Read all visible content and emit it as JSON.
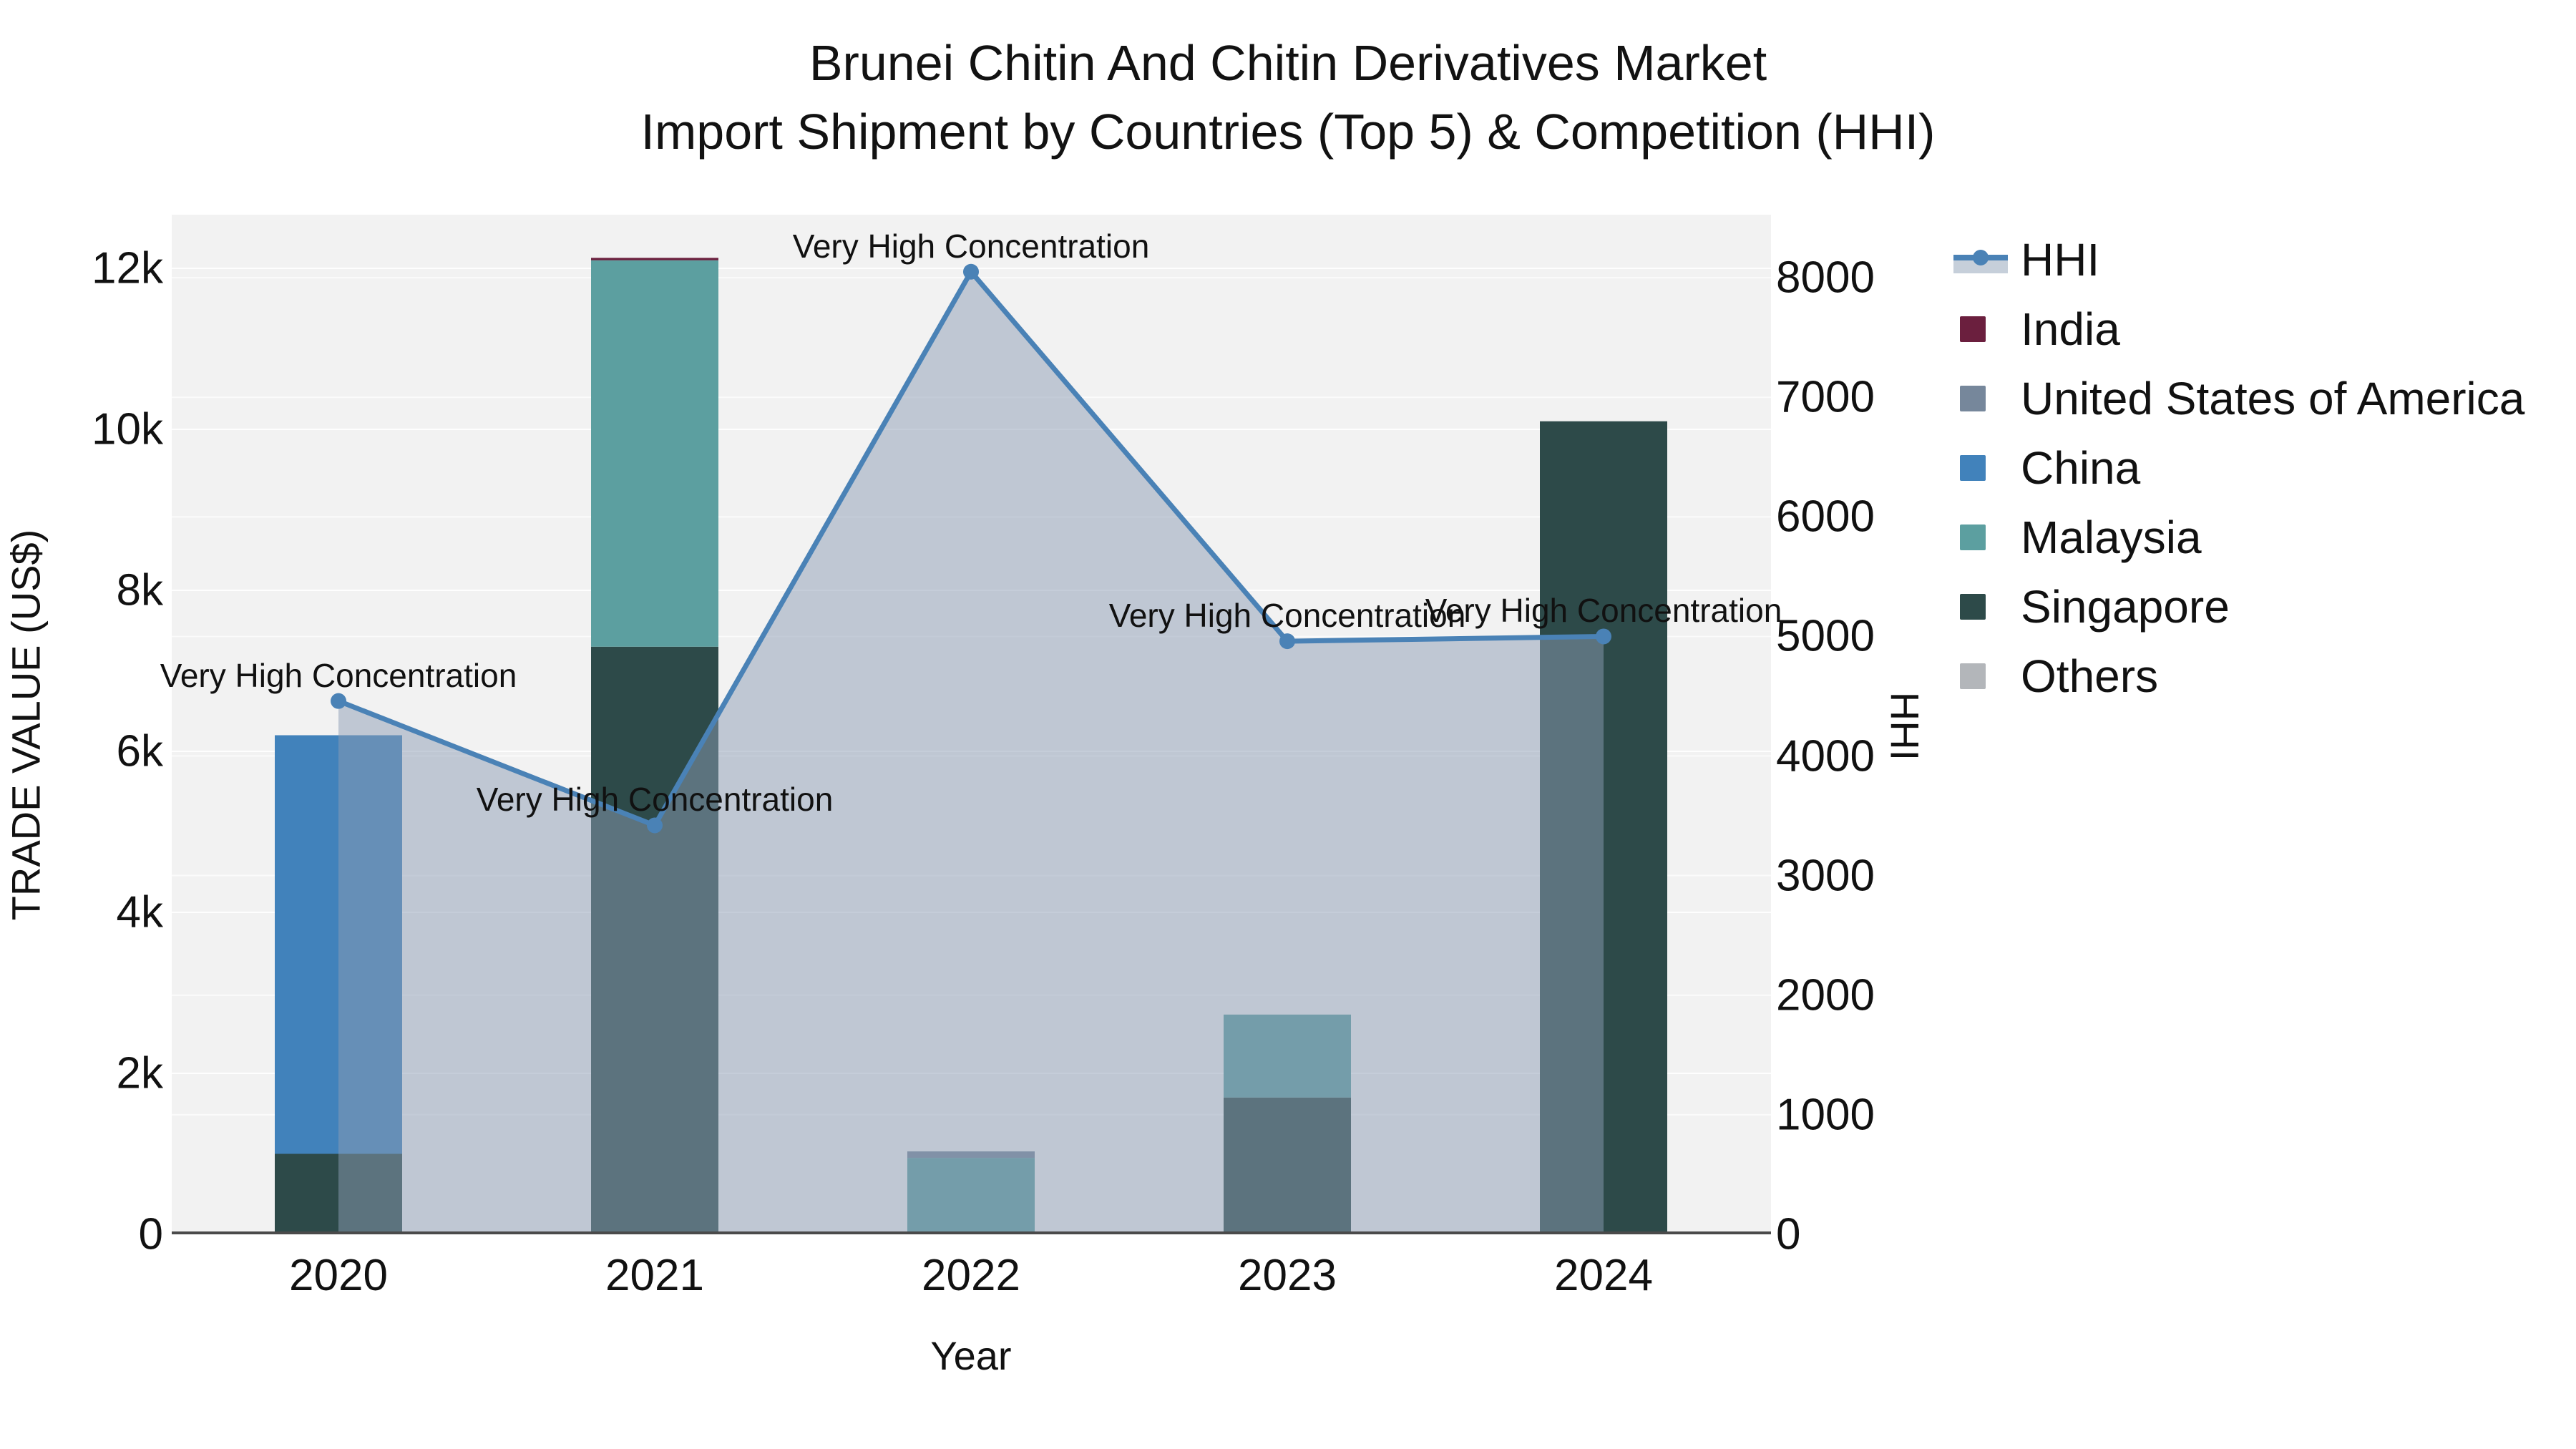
{
  "title": {
    "line1": "Brunei Chitin And Chitin Derivatives Market",
    "line2": "Import Shipment by Countries (Top 5) & Competition (HHI)"
  },
  "axes": {
    "x": {
      "title": "Year",
      "ticks": [
        "2020",
        "2021",
        "2022",
        "2023",
        "2024"
      ]
    },
    "y_left": {
      "title": "TRADE VALUE (US$)",
      "ticks": [
        "0",
        "2k",
        "4k",
        "6k",
        "8k",
        "10k",
        "12k"
      ],
      "tick_values": [
        0,
        2000,
        4000,
        6000,
        8000,
        10000,
        12000
      ]
    },
    "y_right": {
      "title": "HHI",
      "ticks": [
        "0",
        "1000",
        "2000",
        "3000",
        "4000",
        "5000",
        "6000",
        "7000",
        "8000"
      ],
      "tick_values": [
        0,
        1000,
        2000,
        3000,
        4000,
        5000,
        6000,
        7000,
        8000
      ]
    }
  },
  "legend": {
    "order": [
      "HHI",
      "India",
      "United States of America",
      "China",
      "Malaysia",
      "Singapore",
      "Others"
    ]
  },
  "colors": {
    "text": "#111111",
    "plot_bg": "#f2f2f2",
    "axis_line": "#4a4a4a",
    "gridline": "#ffffff",
    "hhi_line": "#4a82b6",
    "hhi_area": "rgba(140,156,180,0.5)",
    "india": "#6b1f3e",
    "united_states_of_america": "#76879b",
    "china": "#4182bb",
    "malaysia": "#5c9fa0",
    "singapore": "#2d4a49",
    "others": "#b3b6ba"
  },
  "chart_data": {
    "type": "bar+line",
    "title": "Brunei Chitin And Chitin Derivatives Market — Import Shipment by Countries (Top 5) & Competition (HHI)",
    "xlabel": "Year",
    "ylabel_left": "TRADE VALUE (US$)",
    "ylabel_right": "HHI",
    "categories": [
      "2020",
      "2021",
      "2022",
      "2023",
      "2024"
    ],
    "stack_order_bottom_to_top": [
      "Singapore",
      "Malaysia",
      "China",
      "United States of America",
      "India",
      "Others"
    ],
    "series": [
      {
        "name": "India",
        "type": "bar",
        "color": "#6b1f3e",
        "values": [
          0,
          30,
          0,
          0,
          0
        ]
      },
      {
        "name": "United States of America",
        "type": "bar",
        "color": "#76879b",
        "values": [
          0,
          0,
          80,
          0,
          0
        ]
      },
      {
        "name": "China",
        "type": "bar",
        "color": "#4182bb",
        "values": [
          5200,
          0,
          0,
          0,
          0
        ]
      },
      {
        "name": "Malaysia",
        "type": "bar",
        "color": "#5c9fa0",
        "values": [
          0,
          4800,
          950,
          1030,
          0
        ]
      },
      {
        "name": "Singapore",
        "type": "bar",
        "color": "#2d4a49",
        "values": [
          1000,
          7300,
          0,
          1700,
          10100
        ]
      },
      {
        "name": "Others",
        "type": "bar",
        "color": "#b3b6ba",
        "values": [
          0,
          0,
          0,
          0,
          0
        ]
      }
    ],
    "line_series": {
      "name": "HHI",
      "axis": "right",
      "style": "line+markers+area",
      "color": "#4a82b6",
      "fill": "rgba(140,156,180,0.5)",
      "values": [
        4460,
        3420,
        8050,
        4960,
        5000
      ]
    },
    "ylim_left": [
      0,
      12700
    ],
    "ylim_right": [
      0,
      8500
    ],
    "grid": true,
    "legend_position": "right",
    "annotations": [
      {
        "category": "2020",
        "text": "Very High Concentration"
      },
      {
        "category": "2021",
        "text": "Very High Concentration"
      },
      {
        "category": "2022",
        "text": "Very High Concentration"
      },
      {
        "category": "2023",
        "text": "Very High Concentration"
      },
      {
        "category": "2024",
        "text": "Very High Concentration"
      }
    ]
  }
}
